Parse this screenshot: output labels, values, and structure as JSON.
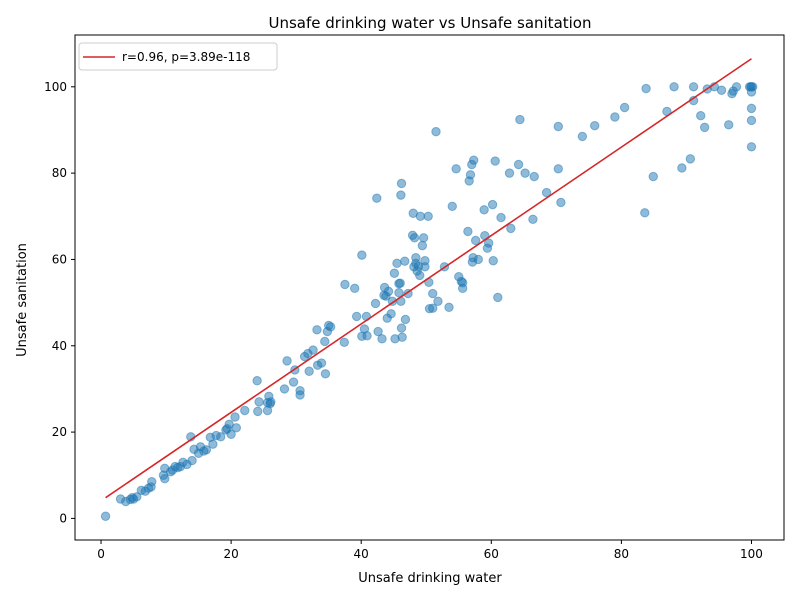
{
  "chart_data": {
    "type": "scatter",
    "title": "Unsafe drinking water vs Unsafe sanitation",
    "xlabel": "Unsafe drinking water",
    "ylabel": "Unsafe sanitation",
    "xlim": [
      -4,
      105
    ],
    "ylim": [
      -5,
      112
    ],
    "xticks": [
      0,
      20,
      40,
      60,
      80,
      100
    ],
    "yticks": [
      0,
      20,
      40,
      60,
      80,
      100
    ],
    "grid": false,
    "legend_position": "upper-left",
    "colors": {
      "points": "#1f77b4",
      "fit_line": "#d62728"
    },
    "fit_line": {
      "label": "r=0.96, p=3.89e-118",
      "x": [
        0.7,
        100
      ],
      "y": [
        4.8,
        106.5
      ]
    },
    "points": [
      [
        0.7,
        0.5
      ],
      [
        3,
        4.5
      ],
      [
        3.8,
        3.9
      ],
      [
        4.5,
        4.4
      ],
      [
        4.8,
        4.8
      ],
      [
        5,
        4.5
      ],
      [
        5.5,
        5
      ],
      [
        6.2,
        6.5
      ],
      [
        6.8,
        6.3
      ],
      [
        7.3,
        7
      ],
      [
        7.7,
        7.3
      ],
      [
        7.8,
        8.5
      ],
      [
        9.6,
        10
      ],
      [
        9.8,
        9.2
      ],
      [
        9.8,
        11.6
      ],
      [
        10.7,
        10.8
      ],
      [
        11,
        11.2
      ],
      [
        11.4,
        12
      ],
      [
        11.8,
        11.8
      ],
      [
        12.2,
        12
      ],
      [
        12.6,
        13
      ],
      [
        13.2,
        12.5
      ],
      [
        13.8,
        18.9
      ],
      [
        14,
        13.4
      ],
      [
        14.3,
        16
      ],
      [
        15,
        15.1
      ],
      [
        15.3,
        16.6
      ],
      [
        15.8,
        15.6
      ],
      [
        16.2,
        15.9
      ],
      [
        16.8,
        18.8
      ],
      [
        17.2,
        17.2
      ],
      [
        17.7,
        19.2
      ],
      [
        18.4,
        18.9
      ],
      [
        19.2,
        20.5
      ],
      [
        19.4,
        20.8
      ],
      [
        19.7,
        21.8
      ],
      [
        20,
        19.5
      ],
      [
        20.6,
        23.5
      ],
      [
        20.8,
        21
      ],
      [
        22.1,
        25
      ],
      [
        24,
        31.9
      ],
      [
        24.1,
        24.8
      ],
      [
        24.3,
        27
      ],
      [
        25.6,
        26.8
      ],
      [
        25.6,
        25
      ],
      [
        25.8,
        28.3
      ],
      [
        26,
        26.6
      ],
      [
        26.1,
        27
      ],
      [
        28.2,
        30
      ],
      [
        28.6,
        36.5
      ],
      [
        29.6,
        31.6
      ],
      [
        29.8,
        34.4
      ],
      [
        30.6,
        29.6
      ],
      [
        30.6,
        28.6
      ],
      [
        31.3,
        37.5
      ],
      [
        31.8,
        38.2
      ],
      [
        32,
        34.1
      ],
      [
        32.6,
        39
      ],
      [
        33.2,
        43.7
      ],
      [
        33.3,
        35.5
      ],
      [
        33.9,
        36
      ],
      [
        34.4,
        41
      ],
      [
        34.5,
        33.5
      ],
      [
        34.8,
        43.3
      ],
      [
        35,
        44.7
      ],
      [
        35.3,
        44.4
      ],
      [
        37.4,
        40.8
      ],
      [
        37.5,
        54.2
      ],
      [
        39,
        53.3
      ],
      [
        39.3,
        46.8
      ],
      [
        40.1,
        61
      ],
      [
        40.1,
        42.2
      ],
      [
        40.5,
        43.9
      ],
      [
        40.8,
        46.8
      ],
      [
        40.9,
        42.3
      ],
      [
        42.2,
        49.8
      ],
      [
        42.4,
        74.2
      ],
      [
        42.6,
        43.3
      ],
      [
        43.2,
        41.6
      ],
      [
        43.5,
        51.7
      ],
      [
        43.6,
        53.5
      ],
      [
        43.8,
        51.5
      ],
      [
        44,
        46.4
      ],
      [
        44.2,
        52.6
      ],
      [
        44.6,
        47.4
      ],
      [
        44.8,
        50.3
      ],
      [
        45.1,
        56.8
      ],
      [
        45.2,
        41.6
      ],
      [
        45.5,
        59.1
      ],
      [
        45.8,
        54.4
      ],
      [
        45.8,
        52.3
      ],
      [
        46,
        54.5
      ],
      [
        46.1,
        50.3
      ],
      [
        46.1,
        74.9
      ],
      [
        46.2,
        77.6
      ],
      [
        46.2,
        44.1
      ],
      [
        46.3,
        42
      ],
      [
        46.7,
        59.6
      ],
      [
        46.8,
        46.1
      ],
      [
        47.2,
        52.1
      ],
      [
        47.9,
        65.6
      ],
      [
        48,
        70.7
      ],
      [
        48.1,
        58.3
      ],
      [
        48.2,
        65
      ],
      [
        48.4,
        60.4
      ],
      [
        48.4,
        59.1
      ],
      [
        48.6,
        57.3
      ],
      [
        48.8,
        58.4
      ],
      [
        49,
        56.3
      ],
      [
        49.1,
        70
      ],
      [
        49.4,
        63.2
      ],
      [
        49.6,
        65
      ],
      [
        49.8,
        59.7
      ],
      [
        49.8,
        58.3
      ],
      [
        50.3,
        70
      ],
      [
        50.4,
        54.7
      ],
      [
        50.5,
        48.6
      ],
      [
        51,
        52.1
      ],
      [
        51,
        48.7
      ],
      [
        51.5,
        89.6
      ],
      [
        51.8,
        50.3
      ],
      [
        52.8,
        58.3
      ],
      [
        53.5,
        48.9
      ],
      [
        54,
        72.3
      ],
      [
        54.6,
        81
      ],
      [
        55,
        56
      ],
      [
        55.4,
        54.9
      ],
      [
        55.6,
        53.3
      ],
      [
        55.6,
        54.6
      ],
      [
        56.4,
        66.5
      ],
      [
        56.6,
        78.2
      ],
      [
        56.8,
        79.6
      ],
      [
        57,
        82
      ],
      [
        57.1,
        59.4
      ],
      [
        57.2,
        60.4
      ],
      [
        57.3,
        83
      ],
      [
        57.6,
        64.4
      ],
      [
        58,
        60
      ],
      [
        58.9,
        71.5
      ],
      [
        59,
        65.5
      ],
      [
        59.4,
        62.6
      ],
      [
        59.6,
        63.8
      ],
      [
        60.2,
        72.7
      ],
      [
        60.3,
        59.7
      ],
      [
        60.6,
        82.8
      ],
      [
        61,
        51.2
      ],
      [
        61.5,
        69.7
      ],
      [
        62.8,
        80
      ],
      [
        63,
        67.2
      ],
      [
        64.2,
        82
      ],
      [
        64.4,
        92.4
      ],
      [
        65.2,
        80
      ],
      [
        66.4,
        69.3
      ],
      [
        66.6,
        79.2
      ],
      [
        68.5,
        75.5
      ],
      [
        70.3,
        90.8
      ],
      [
        70.3,
        81
      ],
      [
        70.7,
        73.2
      ],
      [
        74,
        88.5
      ],
      [
        75.9,
        91
      ],
      [
        79,
        93
      ],
      [
        80.5,
        95.2
      ],
      [
        83.6,
        70.8
      ],
      [
        83.8,
        99.6
      ],
      [
        84.9,
        79.2
      ],
      [
        87,
        94.3
      ],
      [
        88.1,
        100
      ],
      [
        89.3,
        81.2
      ],
      [
        90.6,
        83.3
      ],
      [
        91.1,
        100
      ],
      [
        91.1,
        96.8
      ],
      [
        92.2,
        93.3
      ],
      [
        92.8,
        90.6
      ],
      [
        93.2,
        99.5
      ],
      [
        94.3,
        100
      ],
      [
        95.4,
        99.2
      ],
      [
        96.5,
        91.2
      ],
      [
        97,
        98.4
      ],
      [
        97.2,
        99
      ],
      [
        97.7,
        100
      ],
      [
        99.7,
        100
      ],
      [
        99.9,
        100
      ],
      [
        100,
        100
      ],
      [
        100,
        98.8
      ],
      [
        100,
        95
      ],
      [
        100,
        92.2
      ],
      [
        100,
        86.1
      ],
      [
        100.2,
        100
      ]
    ]
  }
}
